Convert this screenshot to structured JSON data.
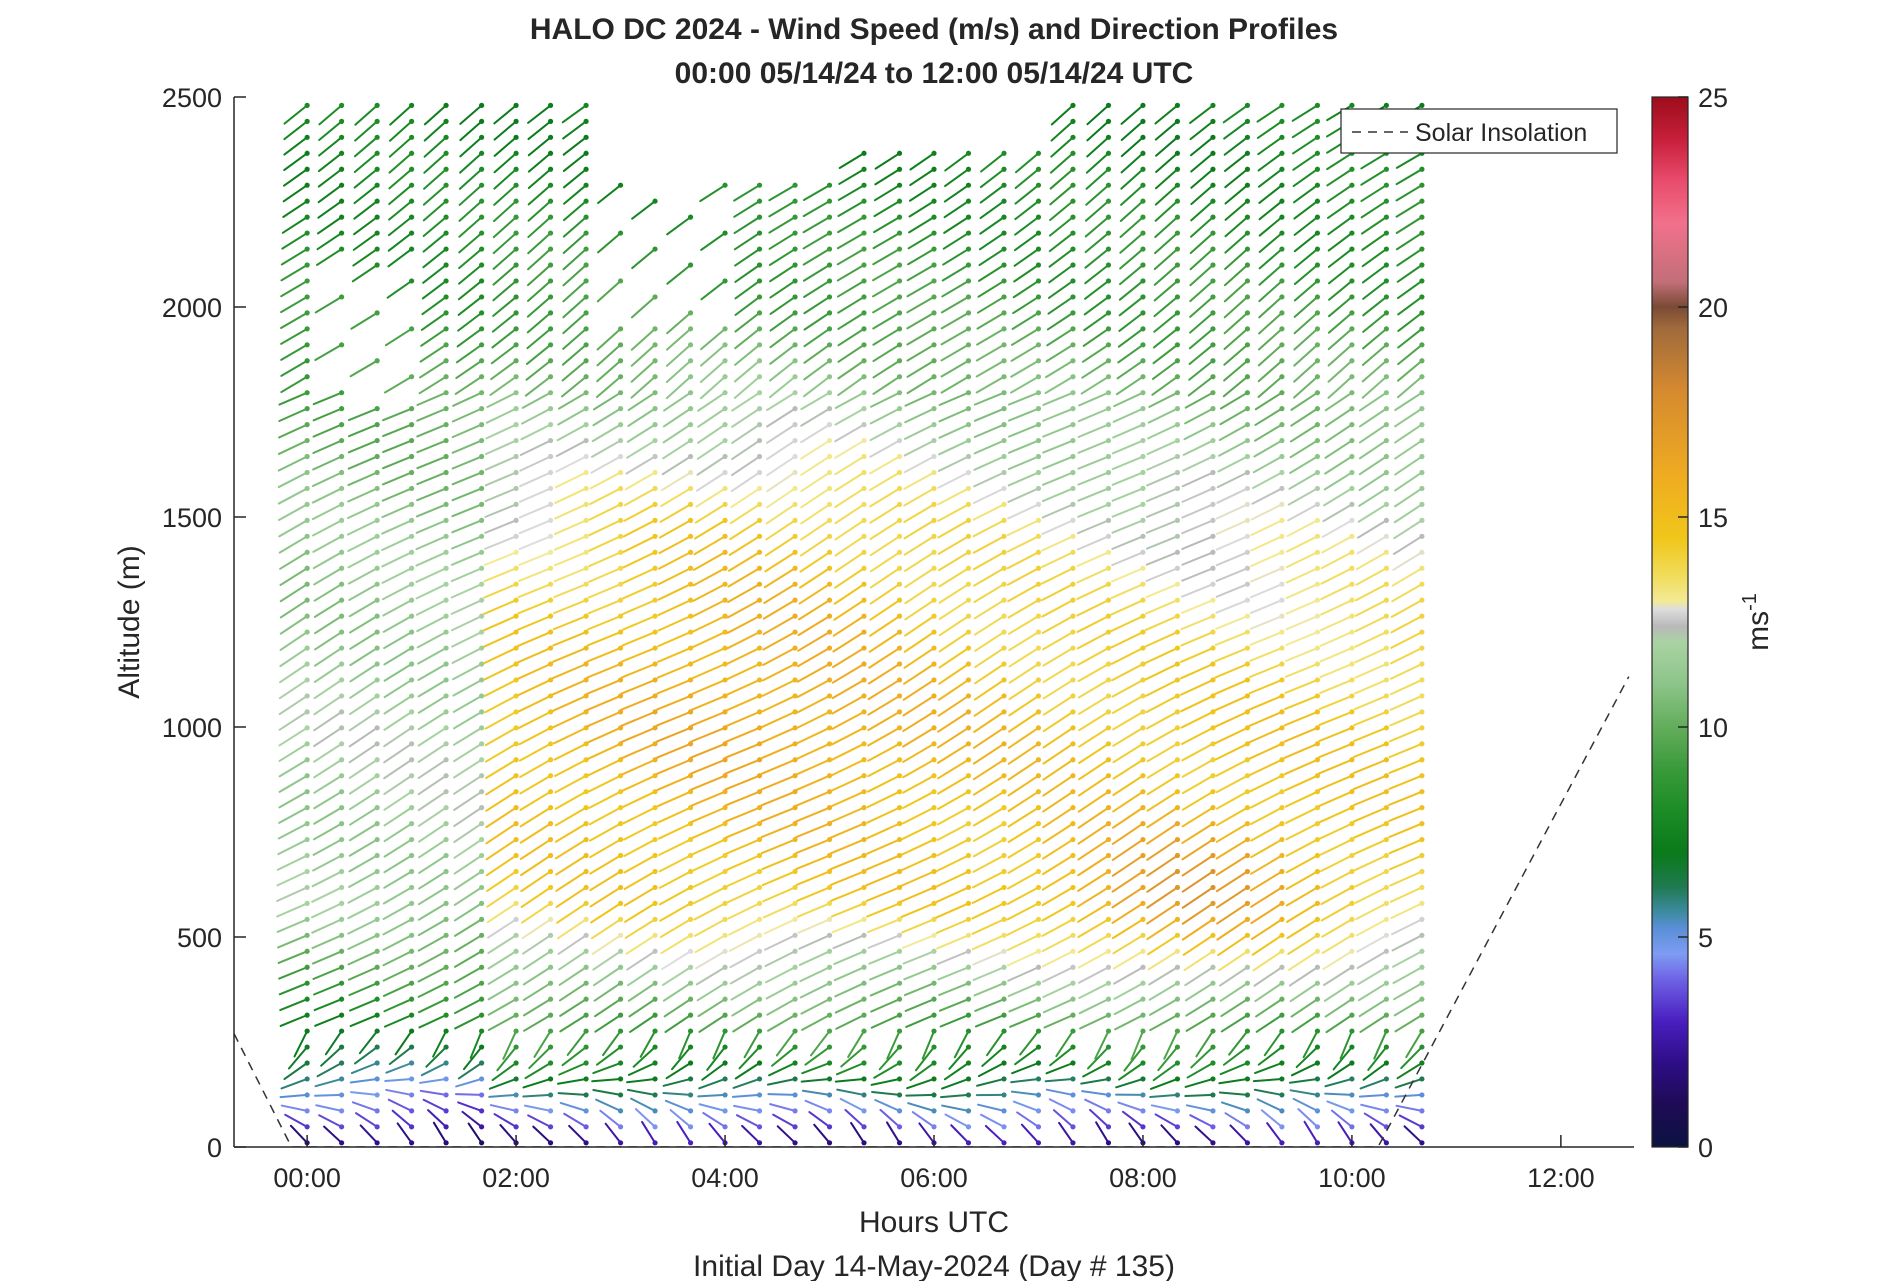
{
  "chart_data": {
    "type": "wind-barb-profile",
    "title": "HALO DC 2024 - Wind Speed (m/s) and Direction Profiles",
    "subtitle": "00:00 05/14/24 to 12:00 05/14/24  UTC",
    "xlabel": "Hours UTC",
    "xlabel_sub": "Initial Day 14-May-2024 (Day # 135)",
    "ylabel": "Altitude (m)",
    "xlim": [
      -0.7,
      12.7
    ],
    "ylim": [
      0,
      2500
    ],
    "x_ticks": [
      0,
      2,
      4,
      6,
      8,
      10,
      12
    ],
    "x_tick_labels": [
      "00:00",
      "02:00",
      "04:00",
      "06:00",
      "08:00",
      "10:00",
      "12:00"
    ],
    "y_ticks": [
      0,
      500,
      1000,
      1500,
      2000,
      2500
    ],
    "y_tick_labels": [
      "0",
      "500",
      "1000",
      "1500",
      "2000",
      "2500"
    ],
    "grid": false,
    "profile_times_hours": [
      0.0,
      0.33,
      0.67,
      1.0,
      1.33,
      1.67,
      2.0,
      2.33,
      2.67,
      3.0,
      3.33,
      3.67,
      4.0,
      4.33,
      4.67,
      5.0,
      5.33,
      5.67,
      6.0,
      6.33,
      6.67,
      7.0,
      7.33,
      7.67,
      8.0,
      8.33,
      8.67,
      9.0,
      9.33,
      9.67,
      10.0,
      10.33,
      10.67
    ],
    "altitude_range_m": [
      10,
      2490
    ],
    "altitude_step_m": 38,
    "wind_speed_ms": [
      {
        "alt": 50,
        "speed": 4.0
      },
      {
        "alt": 200,
        "speed": 7.5
      },
      {
        "alt": 400,
        "speed": 11.0
      },
      {
        "alt": 600,
        "speed": 14.0
      },
      {
        "alt": 1000,
        "speed": 14.5
      },
      {
        "alt": 1500,
        "speed": 12.5
      },
      {
        "alt": 2000,
        "speed": 9.0
      },
      {
        "alt": 2400,
        "speed": 7.5
      }
    ],
    "solar_insolation_line": {
      "name": "Solar Insolation",
      "points": [
        [
          -0.7,
          270
        ],
        [
          -0.15,
          0
        ],
        [
          10.25,
          0
        ],
        [
          12.65,
          1120
        ]
      ]
    },
    "colorbar": {
      "label": "ms",
      "label_superscript": "-1",
      "range": [
        0,
        25
      ],
      "ticks": [
        0,
        5,
        10,
        15,
        20,
        25
      ],
      "tick_labels": [
        "0",
        "5",
        "10",
        "15",
        "20",
        "25"
      ],
      "stops": [
        [
          0,
          "#0b1340"
        ],
        [
          1,
          "#1e0b55"
        ],
        [
          2,
          "#2e0d86"
        ],
        [
          3,
          "#4a1fc0"
        ],
        [
          4,
          "#6f63e6"
        ],
        [
          4.6,
          "#7e9cf2"
        ],
        [
          5.2,
          "#5b8fd8"
        ],
        [
          5.6,
          "#3d8aa0"
        ],
        [
          6.2,
          "#1f7a4f"
        ],
        [
          7.0,
          "#0a7a1a"
        ],
        [
          8.0,
          "#1c8c26"
        ],
        [
          9.0,
          "#3a9a3a"
        ],
        [
          10.0,
          "#63ad5b"
        ],
        [
          11.0,
          "#8cc488"
        ],
        [
          12.0,
          "#a9d3a3"
        ],
        [
          12.4,
          "#b9b9b9"
        ],
        [
          12.8,
          "#dddddd"
        ],
        [
          13.0,
          "#f3ea96"
        ],
        [
          13.6,
          "#f1dc5a"
        ],
        [
          14.5,
          "#f0c61a"
        ],
        [
          16.0,
          "#efab21"
        ],
        [
          18.0,
          "#d58a2f"
        ],
        [
          19.5,
          "#a06a3c"
        ],
        [
          20.0,
          "#7a4a35"
        ],
        [
          20.6,
          "#c26f78"
        ],
        [
          22.0,
          "#f2708c"
        ],
        [
          23.0,
          "#e94c6c"
        ],
        [
          24.0,
          "#c71f3b"
        ],
        [
          25.0,
          "#9c0d1a"
        ]
      ]
    },
    "legend": {
      "placement": "top-right",
      "entries": [
        "Solar Insolation"
      ]
    }
  }
}
